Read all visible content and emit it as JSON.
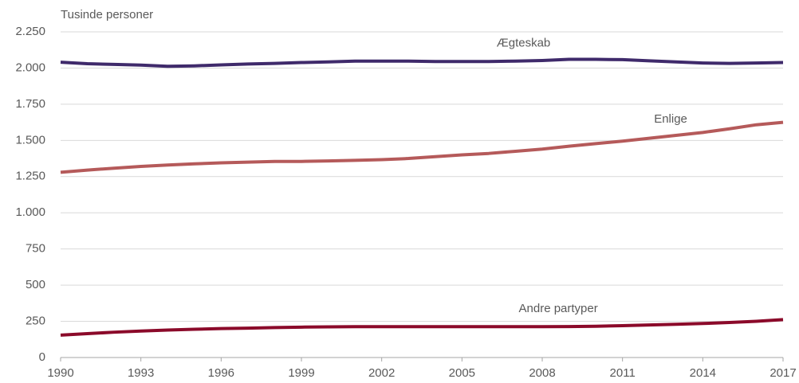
{
  "chart_data": {
    "type": "line",
    "y_axis_label": "Tusinde personer",
    "x": [
      1990,
      1991,
      1992,
      1993,
      1994,
      1995,
      1996,
      1997,
      1998,
      1999,
      2000,
      2001,
      2002,
      2003,
      2004,
      2005,
      2006,
      2007,
      2008,
      2009,
      2010,
      2011,
      2012,
      2013,
      2014,
      2015,
      2016,
      2017
    ],
    "xlim": [
      1990,
      2017
    ],
    "xticks": [
      1990,
      1993,
      1996,
      1999,
      2002,
      2005,
      2008,
      2011,
      2014,
      2017
    ],
    "ylim": [
      0,
      2250
    ],
    "yticks": [
      0,
      250,
      500,
      750,
      {
        "value": 1000,
        "label": "1.000"
      },
      {
        "value": 1250,
        "label": "1.250"
      },
      {
        "value": 1500,
        "label": "1.500"
      },
      {
        "value": 1750,
        "label": "1.750"
      },
      {
        "value": 2000,
        "label": "2.000"
      },
      {
        "value": 2250,
        "label": "2.250"
      }
    ],
    "grid": true,
    "series": [
      {
        "name": "Ægteskab",
        "color": "#3f2a6b",
        "values": [
          2040,
          2030,
          2025,
          2020,
          2012,
          2015,
          2022,
          2028,
          2032,
          2038,
          2042,
          2048,
          2048,
          2048,
          2045,
          2045,
          2045,
          2048,
          2052,
          2060,
          2060,
          2058,
          2050,
          2042,
          2035,
          2032,
          2035,
          2038
        ]
      },
      {
        "name": "Enlige",
        "color": "#b55a5a",
        "values": [
          1280,
          1295,
          1308,
          1320,
          1330,
          1338,
          1345,
          1350,
          1355,
          1355,
          1358,
          1362,
          1367,
          1375,
          1388,
          1400,
          1410,
          1425,
          1440,
          1460,
          1478,
          1495,
          1515,
          1535,
          1555,
          1580,
          1608,
          1625
        ]
      },
      {
        "name": "Andre partyper",
        "color": "#8b0a2a",
        "values": [
          155,
          165,
          175,
          183,
          190,
          195,
          200,
          203,
          207,
          210,
          212,
          213,
          213,
          213,
          213,
          213,
          213,
          213,
          213,
          214,
          216,
          220,
          225,
          230,
          235,
          242,
          250,
          262
        ]
      }
    ]
  }
}
